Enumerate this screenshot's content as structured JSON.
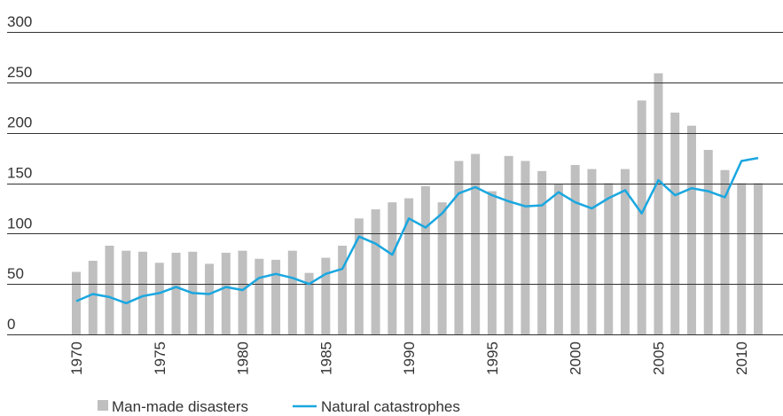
{
  "chart_data": {
    "type": "bar-line",
    "categories": [
      "1970",
      null,
      null,
      null,
      null,
      "1975",
      null,
      null,
      null,
      null,
      "1980",
      null,
      null,
      null,
      null,
      "1985",
      null,
      null,
      null,
      null,
      "1990",
      null,
      null,
      null,
      null,
      "1995",
      null,
      null,
      null,
      null,
      "2000",
      null,
      null,
      null,
      null,
      "2005",
      null,
      null,
      null,
      null,
      "2010",
      null
    ],
    "series": [
      {
        "name": "Man-made disasters",
        "color": "#bfbfbf",
        "kind": "bar",
        "values": [
          62,
          73,
          88,
          83,
          82,
          71,
          81,
          82,
          70,
          81,
          83,
          75,
          74,
          83,
          61,
          76,
          88,
          115,
          124,
          131,
          135,
          147,
          131,
          172,
          179,
          142,
          177,
          172,
          162,
          149,
          168,
          164,
          150,
          164,
          232,
          259,
          220,
          207,
          183,
          163,
          150,
          150
        ]
      },
      {
        "name": "Natural catastrophes",
        "color": "#1aa7e0",
        "kind": "line",
        "values": [
          33,
          40,
          37,
          31,
          38,
          41,
          47,
          41,
          40,
          47,
          44,
          56,
          60,
          56,
          50,
          60,
          65,
          97,
          90,
          79,
          115,
          106,
          120,
          140,
          146,
          138,
          132,
          127,
          128,
          141,
          131,
          125,
          135,
          143,
          120,
          153,
          138,
          145,
          142,
          136,
          172,
          175
        ]
      }
    ],
    "ylim": [
      0,
      300
    ],
    "yticks": [
      0,
      50,
      100,
      150,
      200,
      250,
      300
    ],
    "grid": true
  }
}
